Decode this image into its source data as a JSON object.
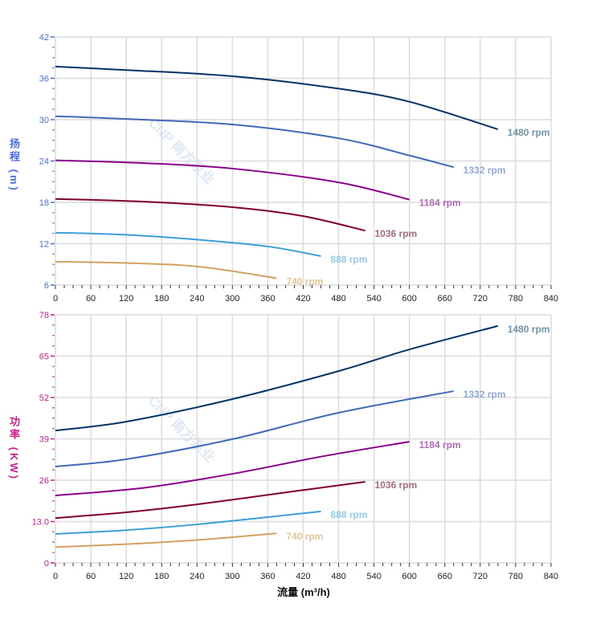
{
  "chart_data": [
    {
      "type": "line",
      "ylabel": "扬程 (m)",
      "ylabel_parts": [
        "扬",
        "程",
        "(m)"
      ],
      "xlabel": "",
      "xlim": [
        0,
        840
      ],
      "ylim": [
        6,
        42
      ],
      "xticks": [
        0,
        60,
        120,
        180,
        240,
        300,
        360,
        420,
        480,
        540,
        600,
        660,
        720,
        780,
        840
      ],
      "yticks": [
        6,
        12,
        18,
        24,
        30,
        36,
        42
      ],
      "ytick_labels": [
        "6",
        "12",
        "18",
        "24",
        "30",
        "36",
        "42"
      ],
      "grid": true,
      "axis_color": "#4a6ee0",
      "series": [
        {
          "name": "1480 rpm",
          "color": "#003366",
          "label_color": "#6f93a8",
          "x": [
            0,
            120,
            300,
            480,
            600,
            750
          ],
          "y": [
            37.7,
            37.2,
            36.3,
            34.5,
            32.6,
            28.6
          ]
        },
        {
          "name": "1332 rpm",
          "color": "#4169b8",
          "label_color": "#90a8d8",
          "x": [
            0,
            120,
            300,
            480,
            600,
            675
          ],
          "y": [
            30.5,
            30.1,
            29.3,
            27.3,
            24.8,
            23.1
          ]
        },
        {
          "name": "1184 rpm",
          "color": "#8b008b",
          "label_color": "#b06cb8",
          "x": [
            0,
            150,
            300,
            480,
            600
          ],
          "y": [
            24.1,
            23.7,
            22.9,
            20.9,
            18.4
          ]
        },
        {
          "name": "1036 rpm",
          "color": "#800030",
          "label_color": "#a86a78",
          "x": [
            0,
            150,
            300,
            420,
            525
          ],
          "y": [
            18.5,
            18.1,
            17.3,
            16.0,
            13.9
          ]
        },
        {
          "name": "888 rpm",
          "color": "#3a9ed8",
          "label_color": "#94c8ec",
          "x": [
            0,
            120,
            240,
            360,
            450
          ],
          "y": [
            13.6,
            13.3,
            12.6,
            11.6,
            10.2
          ]
        },
        {
          "name": "740 rpm",
          "color": "#d4a060",
          "label_color": "#e8c496",
          "x": [
            0,
            120,
            240,
            375
          ],
          "y": [
            9.4,
            9.2,
            8.7,
            7.0
          ]
        }
      ]
    },
    {
      "type": "line",
      "ylabel": "功率 (KW)",
      "ylabel_parts": [
        "功",
        "率",
        "(KW)"
      ],
      "xlabel": "流量 (m³/h)",
      "xlim": [
        0,
        840
      ],
      "ylim": [
        0,
        78
      ],
      "xticks": [
        0,
        60,
        120,
        180,
        240,
        300,
        360,
        420,
        480,
        540,
        600,
        660,
        720,
        780,
        840
      ],
      "yticks": [
        0,
        13,
        26,
        39,
        52,
        65,
        78
      ],
      "ytick_labels": [
        "0",
        "13.0",
        "26",
        "39",
        "52",
        "65",
        "78"
      ],
      "grid": true,
      "axis_color": "#cc1f8a",
      "series": [
        {
          "name": "1480 rpm",
          "color": "#003366",
          "label_color": "#6f93a8",
          "x": [
            0,
            120,
            300,
            480,
            600,
            750
          ],
          "y": [
            41.6,
            44.4,
            51.5,
            60.3,
            67.1,
            74.5
          ]
        },
        {
          "name": "1332 rpm",
          "color": "#4169b8",
          "label_color": "#90a8d8",
          "x": [
            0,
            120,
            300,
            480,
            675
          ],
          "y": [
            30.3,
            32.6,
            38.9,
            47.2,
            54.0
          ]
        },
        {
          "name": "1184 rpm",
          "color": "#8b008b",
          "label_color": "#b06cb8",
          "x": [
            0,
            150,
            300,
            450,
            600
          ],
          "y": [
            21.2,
            23.6,
            28.0,
            33.4,
            38.1
          ]
        },
        {
          "name": "1036 rpm",
          "color": "#800030",
          "label_color": "#a86a78",
          "x": [
            0,
            120,
            240,
            400,
            525
          ],
          "y": [
            14.1,
            15.9,
            18.4,
            22.4,
            25.5
          ]
        },
        {
          "name": "888 rpm",
          "color": "#3a9ed8",
          "label_color": "#94c8ec",
          "x": [
            0,
            120,
            240,
            360,
            450
          ],
          "y": [
            9.1,
            10.3,
            12.1,
            14.4,
            16.2
          ]
        },
        {
          "name": "740 rpm",
          "color": "#d4a060",
          "label_color": "#e8c496",
          "x": [
            0,
            120,
            240,
            375
          ],
          "y": [
            5.0,
            5.9,
            7.2,
            9.3
          ]
        }
      ]
    }
  ],
  "watermark": "CNP 南方泵业"
}
